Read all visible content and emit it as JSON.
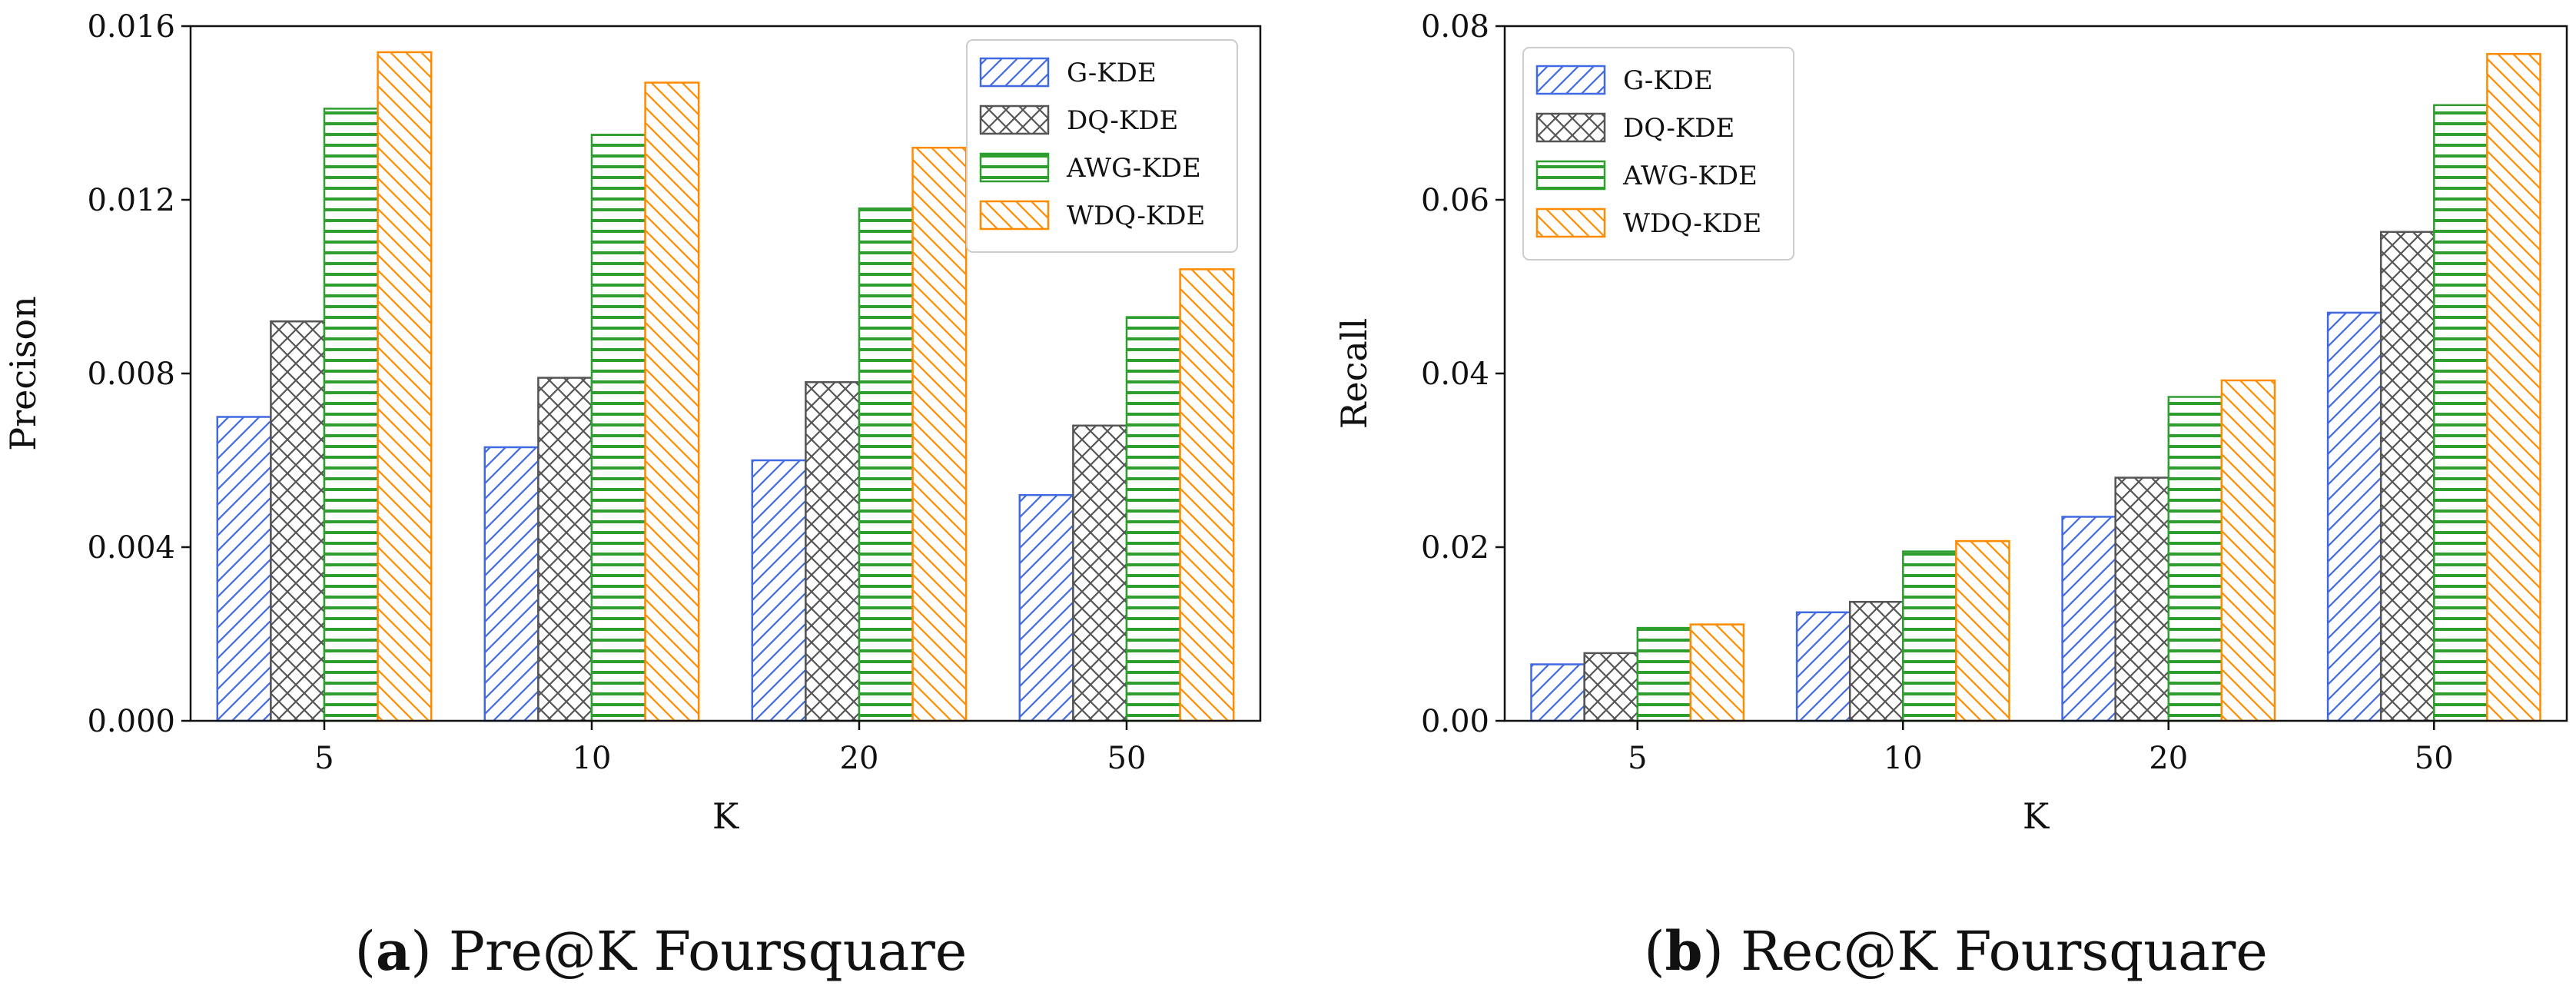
{
  "figure": {
    "panels": [
      {
        "caption_letter": "a",
        "caption_text": "Pre@K Foursquare"
      },
      {
        "caption_letter": "b",
        "caption_text": "Rec@K Foursquare"
      }
    ]
  },
  "colors": {
    "G-KDE": "#4169e1",
    "DQ-KDE": "#555555",
    "AWG-KDE": "#2e9e2e",
    "WDQ-KDE": "#ff8c00"
  },
  "chart_data": [
    {
      "type": "bar",
      "title": "",
      "caption": "(a) Pre@K Foursquare",
      "xlabel": "K",
      "ylabel": "Precison",
      "categories": [
        "5",
        "10",
        "20",
        "50"
      ],
      "ylim": [
        0,
        0.016
      ],
      "yticks": [
        "0.000",
        "0.004",
        "0.008",
        "0.012",
        "0.016"
      ],
      "legend_position": "top-right",
      "series": [
        {
          "name": "G-KDE",
          "pattern": "diag-fwd",
          "values": [
            0.007,
            0.0063,
            0.006,
            0.0052
          ]
        },
        {
          "name": "DQ-KDE",
          "pattern": "cross",
          "values": [
            0.0092,
            0.0079,
            0.0078,
            0.0068
          ]
        },
        {
          "name": "AWG-KDE",
          "pattern": "horizontal",
          "values": [
            0.0141,
            0.0135,
            0.0118,
            0.0093
          ]
        },
        {
          "name": "WDQ-KDE",
          "pattern": "diag-back",
          "values": [
            0.0154,
            0.0147,
            0.0132,
            0.0104
          ]
        }
      ]
    },
    {
      "type": "bar",
      "title": "",
      "caption": "(b) Rec@K Foursquare",
      "xlabel": "K",
      "ylabel": "Recall",
      "categories": [
        "5",
        "10",
        "20",
        "50"
      ],
      "ylim": [
        0,
        0.08
      ],
      "yticks": [
        "0.00",
        "0.02",
        "0.04",
        "0.06",
        "0.08"
      ],
      "legend_position": "top-left",
      "series": [
        {
          "name": "G-KDE",
          "pattern": "diag-fwd",
          "values": [
            0.0065,
            0.0125,
            0.0235,
            0.047
          ]
        },
        {
          "name": "DQ-KDE",
          "pattern": "cross",
          "values": [
            0.0078,
            0.0137,
            0.028,
            0.0563
          ]
        },
        {
          "name": "AWG-KDE",
          "pattern": "horizontal",
          "values": [
            0.0107,
            0.0195,
            0.0373,
            0.0709
          ]
        },
        {
          "name": "WDQ-KDE",
          "pattern": "diag-back",
          "values": [
            0.0111,
            0.0207,
            0.0392,
            0.0768
          ]
        }
      ]
    }
  ]
}
